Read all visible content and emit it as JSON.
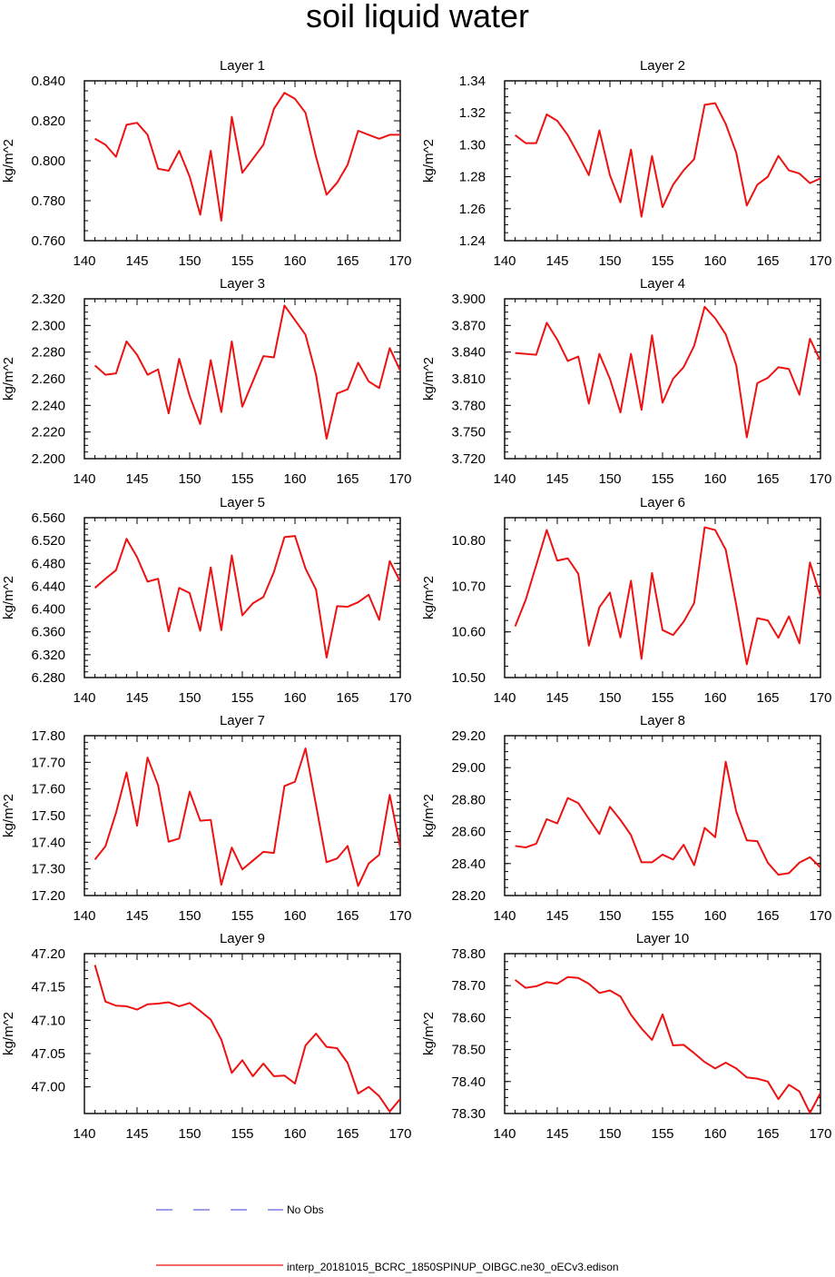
{
  "title": "soil liquid water",
  "legend": [
    {
      "label": "No Obs",
      "color": "#3b3bd8",
      "style": "dashed"
    },
    {
      "label": "interp_20181015_BCRC_1850SPINUP_OIBGC.ne30_oECv3.edison",
      "color": "#ee1111",
      "style": "solid"
    }
  ],
  "chart_data": [
    {
      "type": "line",
      "title": "Layer 1",
      "ylabel": "kg/m^2",
      "xlim": [
        140,
        170
      ],
      "ylim": [
        0.76,
        0.84
      ],
      "xticks": [
        "140",
        "145",
        "150",
        "155",
        "160",
        "165",
        "170"
      ],
      "yticks": [
        "0.760",
        "0.780",
        "0.800",
        "0.820",
        "0.840"
      ],
      "x": [
        141,
        142,
        143,
        144,
        145,
        146,
        147,
        148,
        149,
        150,
        151,
        152,
        153,
        154,
        155,
        156,
        157,
        158,
        159,
        160,
        161,
        162,
        163,
        164,
        165,
        166,
        167,
        168,
        169,
        170
      ],
      "series": [
        {
          "name": "interp_20181015_BCRC_1850SPINUP_OIBGC.ne30_oECv3.edison",
          "color": "#ee1111",
          "values": [
            0.811,
            0.808,
            0.802,
            0.818,
            0.819,
            0.813,
            0.796,
            0.795,
            0.805,
            0.792,
            0.773,
            0.805,
            0.77,
            0.822,
            0.794,
            0.801,
            0.808,
            0.826,
            0.834,
            0.831,
            0.824,
            0.802,
            0.783,
            0.789,
            0.798,
            0.815,
            0.813,
            0.811,
            0.813,
            0.813
          ]
        }
      ]
    },
    {
      "type": "line",
      "title": "Layer 2",
      "ylabel": "kg/m^2",
      "xlim": [
        140,
        170
      ],
      "ylim": [
        1.24,
        1.34
      ],
      "xticks": [
        "140",
        "145",
        "150",
        "155",
        "160",
        "165",
        "170"
      ],
      "yticks": [
        "1.24",
        "1.26",
        "1.28",
        "1.30",
        "1.32",
        "1.34"
      ],
      "x": [
        141,
        142,
        143,
        144,
        145,
        146,
        147,
        148,
        149,
        150,
        151,
        152,
        153,
        154,
        155,
        156,
        157,
        158,
        159,
        160,
        161,
        162,
        163,
        164,
        165,
        166,
        167,
        168,
        169,
        170
      ],
      "series": [
        {
          "name": "interp_20181015_BCRC_1850SPINUP_OIBGC.ne30_oECv3.edison",
          "color": "#ee1111",
          "values": [
            1.306,
            1.301,
            1.301,
            1.319,
            1.315,
            1.306,
            1.294,
            1.281,
            1.309,
            1.281,
            1.264,
            1.297,
            1.255,
            1.293,
            1.261,
            1.275,
            1.284,
            1.291,
            1.325,
            1.326,
            1.313,
            1.295,
            1.262,
            1.275,
            1.28,
            1.293,
            1.284,
            1.282,
            1.276,
            1.279
          ]
        }
      ]
    },
    {
      "type": "line",
      "title": "Layer 3",
      "ylabel": "kg/m^2",
      "xlim": [
        140,
        170
      ],
      "ylim": [
        2.2,
        2.32
      ],
      "xticks": [
        "140",
        "145",
        "150",
        "155",
        "160",
        "165",
        "170"
      ],
      "yticks": [
        "2.200",
        "2.220",
        "2.240",
        "2.260",
        "2.280",
        "2.300",
        "2.320"
      ],
      "x": [
        141,
        142,
        143,
        144,
        145,
        146,
        147,
        148,
        149,
        150,
        151,
        152,
        153,
        154,
        155,
        156,
        157,
        158,
        159,
        160,
        161,
        162,
        163,
        164,
        165,
        166,
        167,
        168,
        169,
        170
      ],
      "series": [
        {
          "name": "interp_20181015_BCRC_1850SPINUP_OIBGC.ne30_oECv3.edison",
          "color": "#ee1111",
          "values": [
            2.27,
            2.263,
            2.264,
            2.288,
            2.278,
            2.263,
            2.267,
            2.234,
            2.275,
            2.247,
            2.226,
            2.274,
            2.235,
            2.288,
            2.239,
            2.258,
            2.277,
            2.276,
            2.315,
            2.304,
            2.293,
            2.263,
            2.215,
            2.249,
            2.252,
            2.272,
            2.258,
            2.253,
            2.283,
            2.266
          ]
        }
      ]
    },
    {
      "type": "line",
      "title": "Layer 4",
      "ylabel": "kg/m^2",
      "xlim": [
        140,
        170
      ],
      "ylim": [
        3.72,
        3.9
      ],
      "xticks": [
        "140",
        "145",
        "150",
        "155",
        "160",
        "165",
        "170"
      ],
      "yticks": [
        "3.720",
        "3.750",
        "3.780",
        "3.810",
        "3.840",
        "3.870",
        "3.900"
      ],
      "x": [
        141,
        142,
        143,
        144,
        145,
        146,
        147,
        148,
        149,
        150,
        151,
        152,
        153,
        154,
        155,
        156,
        157,
        158,
        159,
        160,
        161,
        162,
        163,
        164,
        165,
        166,
        167,
        168,
        169,
        170
      ],
      "series": [
        {
          "name": "interp_20181015_BCRC_1850SPINUP_OIBGC.ne30_oECv3.edison",
          "color": "#ee1111",
          "values": [
            3.839,
            3.838,
            3.837,
            3.873,
            3.854,
            3.83,
            3.835,
            3.782,
            3.838,
            3.81,
            3.772,
            3.838,
            3.775,
            3.859,
            3.783,
            3.81,
            3.823,
            3.847,
            3.891,
            3.878,
            3.86,
            3.825,
            3.744,
            3.805,
            3.811,
            3.823,
            3.821,
            3.792,
            3.855,
            3.83
          ]
        }
      ]
    },
    {
      "type": "line",
      "title": "Layer 5",
      "ylabel": "kg/m^2",
      "xlim": [
        140,
        170
      ],
      "ylim": [
        6.28,
        6.56
      ],
      "xticks": [
        "140",
        "145",
        "150",
        "155",
        "160",
        "165",
        "170"
      ],
      "yticks": [
        "6.280",
        "6.320",
        "6.360",
        "6.400",
        "6.440",
        "6.480",
        "6.520",
        "6.560"
      ],
      "x": [
        141,
        142,
        143,
        144,
        145,
        146,
        147,
        148,
        149,
        150,
        151,
        152,
        153,
        154,
        155,
        156,
        157,
        158,
        159,
        160,
        161,
        162,
        163,
        164,
        165,
        166,
        167,
        168,
        169,
        170
      ],
      "series": [
        {
          "name": "interp_20181015_BCRC_1850SPINUP_OIBGC.ne30_oECv3.edison",
          "color": "#ee1111",
          "values": [
            6.437,
            6.453,
            6.468,
            6.523,
            6.491,
            6.448,
            6.453,
            6.361,
            6.437,
            6.428,
            6.362,
            6.473,
            6.363,
            6.494,
            6.389,
            6.41,
            6.421,
            6.465,
            6.526,
            6.528,
            6.471,
            6.434,
            6.315,
            6.405,
            6.404,
            6.412,
            6.425,
            6.381,
            6.484,
            6.448
          ]
        }
      ]
    },
    {
      "type": "line",
      "title": "Layer 6",
      "ylabel": "kg/m^2",
      "xlim": [
        140,
        170
      ],
      "ylim": [
        10.5,
        10.85
      ],
      "xticks": [
        "140",
        "145",
        "150",
        "155",
        "160",
        "165",
        "170"
      ],
      "yticks": [
        "10.50",
        "10.60",
        "10.70",
        "10.80"
      ],
      "x": [
        141,
        142,
        143,
        144,
        145,
        146,
        147,
        148,
        149,
        150,
        151,
        152,
        153,
        154,
        155,
        156,
        157,
        158,
        159,
        160,
        161,
        162,
        163,
        164,
        165,
        166,
        167,
        168,
        169,
        170
      ],
      "series": [
        {
          "name": "interp_20181015_BCRC_1850SPINUP_OIBGC.ne30_oECv3.edison",
          "color": "#ee1111",
          "values": [
            10.612,
            10.67,
            10.746,
            10.823,
            10.756,
            10.761,
            10.727,
            10.57,
            10.654,
            10.686,
            10.588,
            10.712,
            10.541,
            10.729,
            10.604,
            10.593,
            10.622,
            10.663,
            10.829,
            10.823,
            10.78,
            10.659,
            10.529,
            10.63,
            10.625,
            10.587,
            10.634,
            10.575,
            10.752,
            10.678
          ]
        }
      ]
    },
    {
      "type": "line",
      "title": "Layer 7",
      "ylabel": "kg/m^2",
      "xlim": [
        140,
        170
      ],
      "ylim": [
        17.2,
        17.8
      ],
      "xticks": [
        "140",
        "145",
        "150",
        "155",
        "160",
        "165",
        "170"
      ],
      "yticks": [
        "17.20",
        "17.30",
        "17.40",
        "17.50",
        "17.60",
        "17.70",
        "17.80"
      ],
      "x": [
        141,
        142,
        143,
        144,
        145,
        146,
        147,
        148,
        149,
        150,
        151,
        152,
        153,
        154,
        155,
        156,
        157,
        158,
        159,
        160,
        161,
        162,
        163,
        164,
        165,
        166,
        167,
        168,
        169,
        170
      ],
      "series": [
        {
          "name": "interp_20181015_BCRC_1850SPINUP_OIBGC.ne30_oECv3.edison",
          "color": "#ee1111",
          "values": [
            17.335,
            17.385,
            17.51,
            17.662,
            17.462,
            17.718,
            17.614,
            17.402,
            17.414,
            17.59,
            17.481,
            17.484,
            17.24,
            17.38,
            17.298,
            17.331,
            17.364,
            17.36,
            17.611,
            17.627,
            17.752,
            17.54,
            17.325,
            17.339,
            17.386,
            17.236,
            17.32,
            17.353,
            17.578,
            17.38
          ]
        }
      ]
    },
    {
      "type": "line",
      "title": "Layer 8",
      "ylabel": "kg/m^2",
      "xlim": [
        140,
        170
      ],
      "ylim": [
        28.2,
        29.2
      ],
      "xticks": [
        "140",
        "145",
        "150",
        "155",
        "160",
        "165",
        "170"
      ],
      "yticks": [
        "28.20",
        "28.40",
        "28.60",
        "28.80",
        "29.00",
        "29.20"
      ],
      "x": [
        141,
        142,
        143,
        144,
        145,
        146,
        147,
        148,
        149,
        150,
        151,
        152,
        153,
        154,
        155,
        156,
        157,
        158,
        159,
        160,
        161,
        162,
        163,
        164,
        165,
        166,
        167,
        168,
        169,
        170
      ],
      "series": [
        {
          "name": "interp_20181015_BCRC_1850SPINUP_OIBGC.ne30_oECv3.edison",
          "color": "#ee1111",
          "values": [
            28.51,
            28.501,
            28.524,
            28.678,
            28.651,
            28.81,
            28.778,
            28.68,
            28.585,
            28.755,
            28.673,
            28.578,
            28.408,
            28.408,
            28.456,
            28.425,
            28.518,
            28.39,
            28.623,
            28.565,
            29.037,
            28.725,
            28.545,
            28.54,
            28.405,
            28.33,
            28.34,
            28.406,
            28.44,
            28.375
          ]
        }
      ]
    },
    {
      "type": "line",
      "title": "Layer 9",
      "ylabel": "kg/m^2",
      "xlim": [
        140,
        170
      ],
      "ylim": [
        46.96,
        47.2
      ],
      "xticks": [
        "140",
        "145",
        "150",
        "155",
        "160",
        "165",
        "170"
      ],
      "yticks": [
        "47.00",
        "47.05",
        "47.10",
        "47.15",
        "47.20"
      ],
      "x": [
        141,
        142,
        143,
        144,
        145,
        146,
        147,
        148,
        149,
        150,
        151,
        152,
        153,
        154,
        155,
        156,
        157,
        158,
        159,
        160,
        161,
        162,
        163,
        164,
        165,
        166,
        167,
        168,
        169,
        170
      ],
      "series": [
        {
          "name": "interp_20181015_BCRC_1850SPINUP_OIBGC.ne30_oECv3.edison",
          "color": "#ee1111",
          "values": [
            47.183,
            47.128,
            47.122,
            47.121,
            47.116,
            47.124,
            47.125,
            47.127,
            47.121,
            47.126,
            47.114,
            47.101,
            47.071,
            47.021,
            47.04,
            47.016,
            47.035,
            47.016,
            47.017,
            47.005,
            47.062,
            47.08,
            47.06,
            47.058,
            47.036,
            46.99,
            47.0,
            46.986,
            46.963,
            46.982
          ]
        }
      ]
    },
    {
      "type": "line",
      "title": "Layer 10",
      "ylabel": "kg/m^2",
      "xlim": [
        140,
        170
      ],
      "ylim": [
        78.3,
        78.8
      ],
      "xticks": [
        "140",
        "145",
        "150",
        "155",
        "160",
        "165",
        "170"
      ],
      "yticks": [
        "78.30",
        "78.40",
        "78.50",
        "78.60",
        "78.70",
        "78.80"
      ],
      "x": [
        141,
        142,
        143,
        144,
        145,
        146,
        147,
        148,
        149,
        150,
        151,
        152,
        153,
        154,
        155,
        156,
        157,
        158,
        159,
        160,
        161,
        162,
        163,
        164,
        165,
        166,
        167,
        168,
        169,
        170
      ],
      "series": [
        {
          "name": "interp_20181015_BCRC_1850SPINUP_OIBGC.ne30_oECv3.edison",
          "color": "#ee1111",
          "values": [
            78.718,
            78.693,
            78.698,
            78.711,
            78.706,
            78.727,
            78.724,
            78.706,
            78.677,
            78.685,
            78.666,
            78.609,
            78.566,
            78.53,
            78.61,
            78.513,
            78.515,
            78.489,
            78.461,
            78.441,
            78.459,
            78.441,
            78.413,
            78.409,
            78.4,
            78.345,
            78.39,
            78.369,
            78.302,
            78.364
          ]
        }
      ]
    }
  ]
}
